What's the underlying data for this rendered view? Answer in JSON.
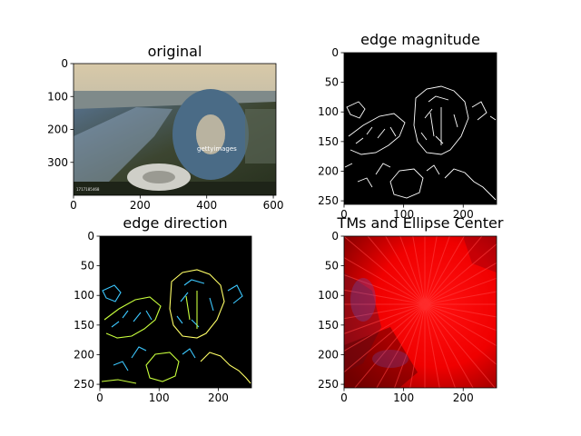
{
  "figure": {
    "background": "#ffffff"
  },
  "chart_data": [
    {
      "type": "image",
      "title": "original",
      "xticks": [
        "0",
        "200",
        "400",
        "600"
      ],
      "yticks": [
        "0",
        "100",
        "200",
        "300"
      ],
      "xlim": [
        0,
        608
      ],
      "ylim": [
        400,
        0
      ],
      "ytick_values": [
        0,
        100,
        200,
        300
      ],
      "xtick_values": [
        0,
        200,
        400,
        600
      ],
      "watermark": "gettyimages",
      "corner_label": "1717185468",
      "colors": {
        "sky": "#d8c9a8",
        "water": "#7f8a8a",
        "building": "#4a6b86",
        "ground": "#3c4530"
      }
    },
    {
      "type": "image",
      "title": "edge magnitude",
      "xticks": [
        "0",
        "100",
        "200"
      ],
      "yticks": [
        "0",
        "50",
        "100",
        "150",
        "200",
        "250"
      ],
      "xlim": [
        0,
        256
      ],
      "ylim": [
        256,
        0
      ],
      "xtick_values": [
        0,
        100,
        200
      ],
      "ytick_values": [
        0,
        50,
        100,
        150,
        200,
        250
      ],
      "colors": {
        "background": "#000000",
        "edges": "#ffffff"
      }
    },
    {
      "type": "image",
      "title": "edge direction",
      "xticks": [
        "0",
        "100",
        "200"
      ],
      "yticks": [
        "0",
        "50",
        "100",
        "150",
        "200",
        "250"
      ],
      "xlim": [
        0,
        256
      ],
      "ylim": [
        256,
        0
      ],
      "xtick_values": [
        0,
        100,
        200
      ],
      "ytick_values": [
        0,
        50,
        100,
        150,
        200,
        250
      ],
      "colors": {
        "background": "#000000",
        "edges_a": "#3cc8ff",
        "edges_b": "#c8ff3c",
        "edges_c": "#ffff66"
      }
    },
    {
      "type": "image",
      "title": "TMs and Ellipse Center",
      "xticks": [
        "0",
        "100",
        "200"
      ],
      "yticks": [
        "0",
        "50",
        "100",
        "150",
        "200",
        "250"
      ],
      "xlim": [
        0,
        256
      ],
      "ylim": [
        256,
        0
      ],
      "xtick_values": [
        0,
        100,
        200
      ],
      "ytick_values": [
        0,
        50,
        100,
        150,
        200,
        250
      ],
      "colors": {
        "background": "#ff0000",
        "dark": "#5a0000",
        "blue": "#6a4ab0"
      }
    }
  ]
}
